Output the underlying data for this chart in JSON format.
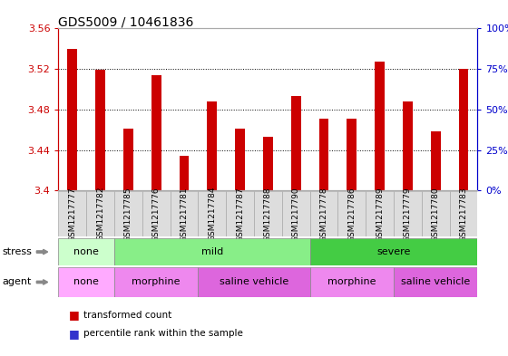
{
  "title": "GDS5009 / 10461836",
  "samples": [
    "GSM1217777",
    "GSM1217782",
    "GSM1217785",
    "GSM1217776",
    "GSM1217781",
    "GSM1217784",
    "GSM1217787",
    "GSM1217788",
    "GSM1217790",
    "GSM1217778",
    "GSM1217786",
    "GSM1217789",
    "GSM1217779",
    "GSM1217780",
    "GSM1217783"
  ],
  "transformed_count": [
    3.54,
    3.519,
    3.461,
    3.514,
    3.434,
    3.488,
    3.461,
    3.453,
    3.493,
    3.471,
    3.471,
    3.527,
    3.488,
    3.458,
    3.52
  ],
  "percentile_rank": [
    3,
    3,
    2,
    3,
    3,
    2,
    2,
    2,
    2,
    2,
    2,
    3,
    2,
    2,
    3
  ],
  "y_min": 3.4,
  "y_max": 3.56,
  "y_ticks": [
    3.4,
    3.44,
    3.48,
    3.52,
    3.56
  ],
  "y2_ticks": [
    0,
    25,
    50,
    75,
    100
  ],
  "bar_color_red": "#cc0000",
  "bar_color_blue": "#3333cc",
  "grid_color": "#000000",
  "stress_labels": [
    {
      "label": "none",
      "start": 0,
      "end": 2,
      "color": "#ccffcc"
    },
    {
      "label": "mild",
      "start": 2,
      "end": 9,
      "color": "#88ee88"
    },
    {
      "label": "severe",
      "start": 9,
      "end": 15,
      "color": "#44cc44"
    }
  ],
  "agent_labels": [
    {
      "label": "none",
      "start": 0,
      "end": 2,
      "color": "#ffaaff"
    },
    {
      "label": "morphine",
      "start": 2,
      "end": 5,
      "color": "#ee88ee"
    },
    {
      "label": "saline vehicle",
      "start": 5,
      "end": 9,
      "color": "#dd66dd"
    },
    {
      "label": "morphine",
      "start": 9,
      "end": 12,
      "color": "#ee88ee"
    },
    {
      "label": "saline vehicle",
      "start": 12,
      "end": 15,
      "color": "#dd66dd"
    }
  ],
  "tick_label_color": "#cc0000",
  "right_axis_color": "#0000cc",
  "title_fontsize": 10,
  "tick_fontsize": 8,
  "bar_width": 0.35,
  "xticklabel_fontsize": 6.5
}
